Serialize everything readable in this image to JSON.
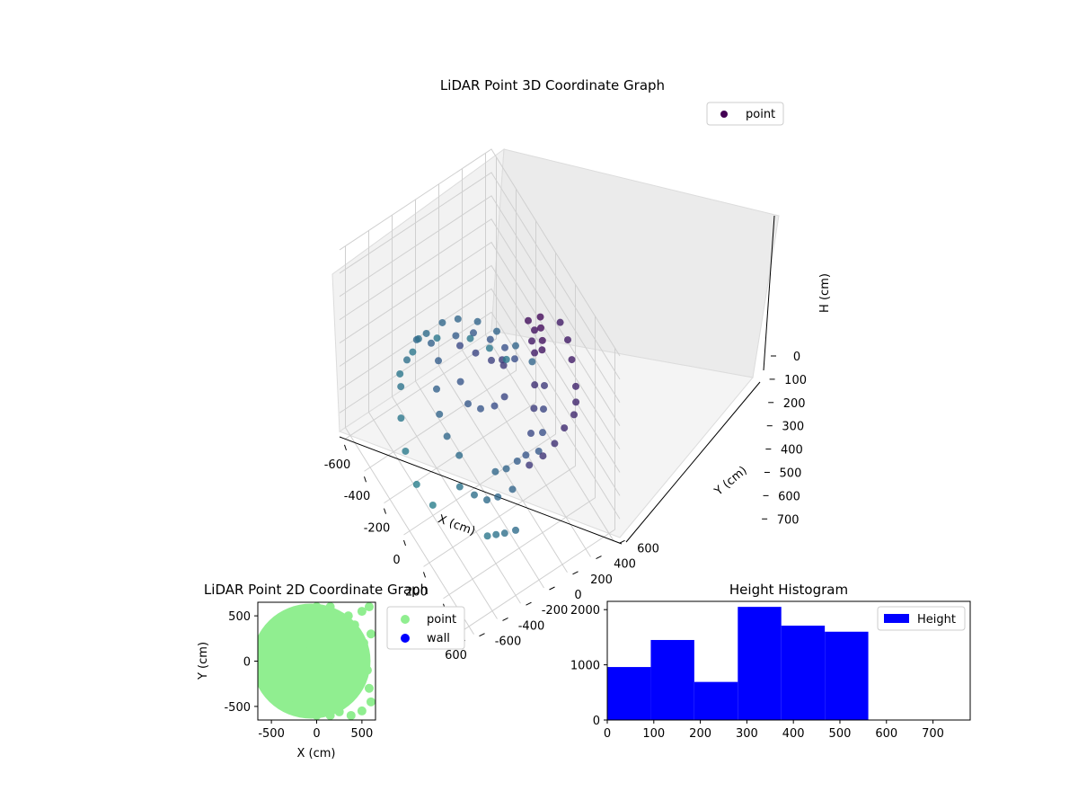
{
  "chart_data": [
    {
      "type": "scatter3d",
      "title": "LiDAR Point 3D Coordinate Graph",
      "xlabel": "X (cm)",
      "ylabel": "Y (cm)",
      "zlabel": "H (cm)",
      "x_ticks": [
        -600,
        -400,
        -200,
        0,
        200,
        400,
        600
      ],
      "y_ticks": [
        -600,
        -400,
        -200,
        0,
        200,
        400,
        600
      ],
      "z_ticks": [
        0,
        100,
        200,
        300,
        400,
        500,
        600,
        700
      ],
      "xlim": [
        -650,
        650
      ],
      "ylim": [
        -650,
        650
      ],
      "zlim": [
        780,
        0
      ],
      "legend": {
        "placement": "upper-right",
        "entries": [
          "point"
        ]
      },
      "colormap": "viridis",
      "grid": true,
      "series": [
        {
          "name": "point",
          "color": "#440154",
          "points": [
            [
              -520,
              -100,
              480
            ],
            [
              -540,
              0,
              500
            ],
            [
              -520,
              120,
              480
            ],
            [
              -480,
              220,
              470
            ],
            [
              -400,
              320,
              460
            ],
            [
              -300,
              400,
              460
            ],
            [
              -180,
              460,
              460
            ],
            [
              -60,
              500,
              460
            ],
            [
              -560,
              -50,
              520
            ],
            [
              -500,
              -200,
              520
            ],
            [
              -420,
              -320,
              540
            ],
            [
              -300,
              -420,
              560
            ],
            [
              -160,
              -500,
              580
            ],
            [
              0,
              -540,
              600
            ],
            [
              140,
              -520,
              600
            ],
            [
              -420,
              -60,
              440
            ],
            [
              -360,
              100,
              420
            ],
            [
              -300,
              200,
              400
            ],
            [
              -200,
              260,
              380
            ],
            [
              -100,
              300,
              360
            ],
            [
              0,
              300,
              340
            ],
            [
              -300,
              -100,
              420
            ],
            [
              -200,
              -200,
              440
            ],
            [
              -100,
              -260,
              460
            ],
            [
              0,
              -280,
              480
            ],
            [
              100,
              -260,
              500
            ],
            [
              -200,
              0,
              320
            ],
            [
              -100,
              50,
              300
            ],
            [
              0,
              100,
              280
            ],
            [
              50,
              150,
              260
            ],
            [
              100,
              120,
              240
            ],
            [
              -100,
              -80,
              380
            ],
            [
              0,
              -100,
              400
            ],
            [
              80,
              -60,
              380
            ],
            [
              150,
              0,
              340
            ],
            [
              180,
              60,
              300
            ],
            [
              160,
              280,
              60
            ],
            [
              200,
              300,
              80
            ],
            [
              240,
              320,
              50
            ],
            [
              280,
              300,
              70
            ],
            [
              220,
              260,
              100
            ],
            [
              260,
              250,
              120
            ],
            [
              300,
              280,
              90
            ],
            [
              200,
              350,
              40
            ],
            [
              320,
              200,
              200
            ],
            [
              360,
              160,
              260
            ],
            [
              400,
              100,
              320
            ],
            [
              420,
              40,
              380
            ],
            [
              380,
              0,
              420
            ],
            [
              340,
              -60,
              460
            ],
            [
              300,
              -120,
              480
            ],
            [
              300,
              300,
              250
            ],
            [
              350,
              250,
              300
            ],
            [
              400,
              200,
              350
            ],
            [
              420,
              150,
              400
            ],
            [
              450,
              -100,
              460
            ],
            [
              420,
              -200,
              480
            ],
            [
              380,
              -260,
              500
            ],
            [
              300,
              -300,
              520
            ],
            [
              200,
              -340,
              540
            ],
            [
              500,
              400,
              150
            ],
            [
              560,
              350,
              160
            ],
            [
              600,
              300,
              170
            ],
            [
              620,
              200,
              180
            ],
            [
              640,
              100,
              200
            ],
            [
              640,
              0,
              220
            ],
            [
              620,
              -100,
              240
            ],
            [
              600,
              -200,
              500
            ],
            [
              560,
              -260,
              520
            ],
            [
              520,
              -300,
              540
            ],
            [
              480,
              -340,
              560
            ],
            [
              400,
              450,
              120
            ],
            [
              300,
              500,
              120
            ],
            [
              200,
              520,
              120
            ],
            [
              -450,
              300,
              560
            ],
            [
              -350,
              380,
              560
            ],
            [
              -250,
              440,
              560
            ],
            [
              -550,
              100,
              560
            ],
            [
              -560,
              -100,
              560
            ],
            [
              -500,
              -260,
              560
            ]
          ]
        }
      ]
    },
    {
      "type": "scatter",
      "title": "LiDAR Point 2D Coordinate Graph",
      "xlabel": "X (cm)",
      "ylabel": "Y (cm)",
      "x_ticks": [
        -500,
        0,
        500
      ],
      "y_ticks": [
        -500,
        0,
        500
      ],
      "xlim": [
        -650,
        650
      ],
      "ylim": [
        -650,
        650
      ],
      "legend": {
        "placement": "outside-right",
        "entries": [
          "point",
          "wall"
        ]
      },
      "series": [
        {
          "name": "point",
          "color": "#90ee90",
          "points": [
            [
              -500,
              0
            ],
            [
              -450,
              200
            ],
            [
              -400,
              300
            ],
            [
              -300,
              450
            ],
            [
              -150,
              550
            ],
            [
              0,
              600
            ],
            [
              150,
              600
            ],
            [
              -450,
              -200
            ],
            [
              -400,
              -350
            ],
            [
              -300,
              -480
            ],
            [
              -150,
              -560
            ],
            [
              0,
              -600
            ],
            [
              150,
              -600
            ],
            [
              250,
              -560
            ],
            [
              300,
              300
            ],
            [
              350,
              500
            ],
            [
              420,
              400
            ],
            [
              500,
              550
            ],
            [
              580,
              600
            ],
            [
              600,
              300
            ],
            [
              520,
              200
            ],
            [
              560,
              -100
            ],
            [
              580,
              -300
            ],
            [
              600,
              -450
            ],
            [
              500,
              -550
            ],
            [
              380,
              -600
            ],
            [
              540,
              50
            ],
            [
              -350,
              100
            ],
            [
              -250,
              0
            ],
            [
              -100,
              100
            ],
            [
              50,
              -100
            ],
            [
              200,
              0
            ],
            [
              150,
              200
            ],
            [
              100,
              400
            ],
            [
              -200,
              -300
            ],
            [
              0,
              -300
            ],
            [
              200,
              -300
            ],
            [
              530,
              -10
            ]
          ]
        },
        {
          "name": "wall",
          "color": "#0000ff",
          "points": []
        }
      ]
    },
    {
      "type": "bar",
      "title": "Height Histogram",
      "legend": {
        "placement": "upper-right",
        "entries": [
          "Height"
        ]
      },
      "x_ticks": [
        0,
        100,
        200,
        300,
        400,
        500,
        600,
        700
      ],
      "y_ticks": [
        0,
        1000,
        2000
      ],
      "xlim": [
        0,
        780
      ],
      "ylim": [
        0,
        2150
      ],
      "series": [
        {
          "name": "Height",
          "color": "#0000ff",
          "bins": [
            0,
            93.5,
            187,
            280.5,
            374,
            467.5,
            561
          ],
          "values": [
            960,
            1450,
            690,
            2050,
            1710,
            1600
          ]
        }
      ]
    }
  ]
}
